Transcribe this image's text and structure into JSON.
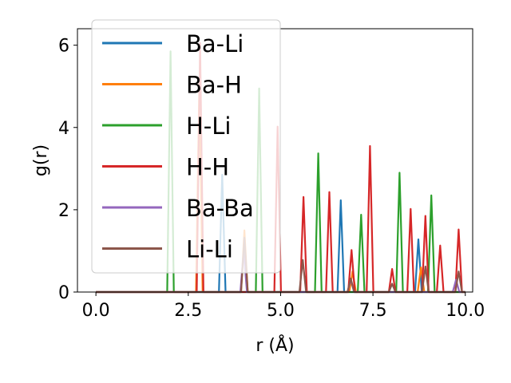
{
  "chart_data": {
    "type": "line",
    "title": "",
    "xlabel": "r (Å)",
    "ylabel": "g(r)",
    "xlim": [
      -0.5,
      10.2
    ],
    "ylim": [
      0,
      6.4
    ],
    "xticks": [
      0.0,
      2.5,
      5.0,
      7.5,
      10.0
    ],
    "xtick_labels": [
      "0.0",
      "2.5",
      "5.0",
      "7.5",
      "10.0"
    ],
    "yticks": [
      0,
      2,
      4,
      6
    ],
    "ytick_labels": [
      "0",
      "2",
      "4",
      "6"
    ],
    "grid": false,
    "legend_position": "top-left",
    "peak_half_width": 0.09,
    "series": [
      {
        "name": "Ba-Li",
        "color": "#1f77b4",
        "peaks": [
          [
            3.42,
            2.85
          ],
          [
            6.63,
            2.23
          ],
          [
            8.73,
            1.28
          ]
        ]
      },
      {
        "name": "Ba-H",
        "color": "#ff7f0e",
        "peaks": [
          [
            2.8,
            5.1
          ],
          [
            4.02,
            1.5
          ],
          [
            6.95,
            0.5
          ],
          [
            8.8,
            0.6
          ]
        ]
      },
      {
        "name": "H-Li",
        "color": "#2ca02c",
        "peaks": [
          [
            2.02,
            5.85
          ],
          [
            4.42,
            4.95
          ],
          [
            6.02,
            3.37
          ],
          [
            7.18,
            1.88
          ],
          [
            8.22,
            2.9
          ],
          [
            9.08,
            2.35
          ]
        ]
      },
      {
        "name": "H-H",
        "color": "#d62728",
        "peaks": [
          [
            2.82,
            6.05
          ],
          [
            4.92,
            4.02
          ],
          [
            5.62,
            2.31
          ],
          [
            6.32,
            2.43
          ],
          [
            6.92,
            1.02
          ],
          [
            7.42,
            3.55
          ],
          [
            8.02,
            0.56
          ],
          [
            8.52,
            2.02
          ],
          [
            8.92,
            1.85
          ],
          [
            9.32,
            1.13
          ],
          [
            9.82,
            1.52
          ]
        ]
      },
      {
        "name": "Ba-Ba",
        "color": "#9467bd",
        "peaks": [
          [
            4.0,
            1.0
          ],
          [
            6.9,
            0.3
          ],
          [
            9.75,
            0.3
          ]
        ]
      },
      {
        "name": "Li-Li",
        "color": "#8c564b",
        "peaks": [
          [
            4.02,
            1.32
          ],
          [
            5.6,
            0.78
          ],
          [
            6.9,
            0.33
          ],
          [
            8.02,
            0.2
          ],
          [
            8.92,
            0.62
          ],
          [
            9.82,
            0.5
          ]
        ]
      }
    ]
  }
}
